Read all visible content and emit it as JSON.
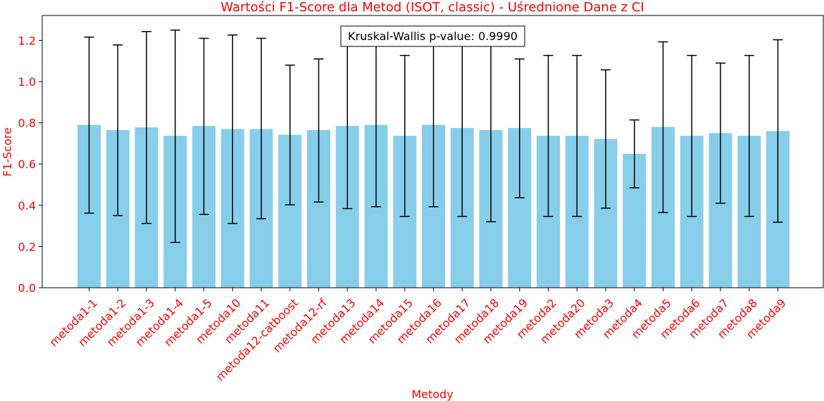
{
  "chart_data": {
    "type": "bar",
    "title": "Wartości F1-Score dla Metod (ISOT, classic) - Uśrednione Dane z CI",
    "xlabel": "Metody",
    "ylabel": "F1-Score",
    "ylim": [
      0,
      1.32
    ],
    "yticks": [
      "0.0",
      "0.2",
      "0.4",
      "0.6",
      "0.8",
      "1.0",
      "1.2"
    ],
    "grid": false,
    "annotation": "Kruskal-Wallis p-value: 0.9990",
    "colors": {
      "bar": "#87ceeb",
      "error": "#000000",
      "text": "#ff0000",
      "axis": "#000000"
    },
    "categories": [
      "metoda1-1",
      "metoda1-2",
      "metoda1-3",
      "metoda1-4",
      "metoda1-5",
      "metoda10",
      "metoda11",
      "metoda12-catboost",
      "metoda12-rf",
      "metoda13",
      "metoda14",
      "metoda15",
      "metoda16",
      "metoda17",
      "metoda18",
      "metoda19",
      "metoda2",
      "metoda20",
      "metoda3",
      "metoda4",
      "metoda5",
      "metoda6",
      "metoda7",
      "metoda8",
      "metoda9"
    ],
    "values": [
      0.79,
      0.765,
      0.778,
      0.737,
      0.785,
      0.77,
      0.77,
      0.742,
      0.765,
      0.785,
      0.79,
      0.737,
      0.79,
      0.775,
      0.765,
      0.775,
      0.737,
      0.737,
      0.722,
      0.65,
      0.78,
      0.737,
      0.75,
      0.737,
      0.76
    ],
    "ci_low": [
      0.362,
      0.35,
      0.312,
      0.22,
      0.356,
      0.312,
      0.335,
      0.402,
      0.416,
      0.384,
      0.393,
      0.346,
      0.393,
      0.346,
      0.32,
      0.437,
      0.346,
      0.346,
      0.386,
      0.485,
      0.365,
      0.346,
      0.41,
      0.346,
      0.318
    ],
    "ci_high": [
      1.216,
      1.178,
      1.243,
      1.25,
      1.21,
      1.226,
      1.21,
      1.08,
      1.11,
      1.186,
      1.186,
      1.127,
      1.186,
      1.2,
      1.21,
      1.11,
      1.127,
      1.127,
      1.057,
      0.814,
      1.193,
      1.127,
      1.09,
      1.127,
      1.203
    ]
  }
}
